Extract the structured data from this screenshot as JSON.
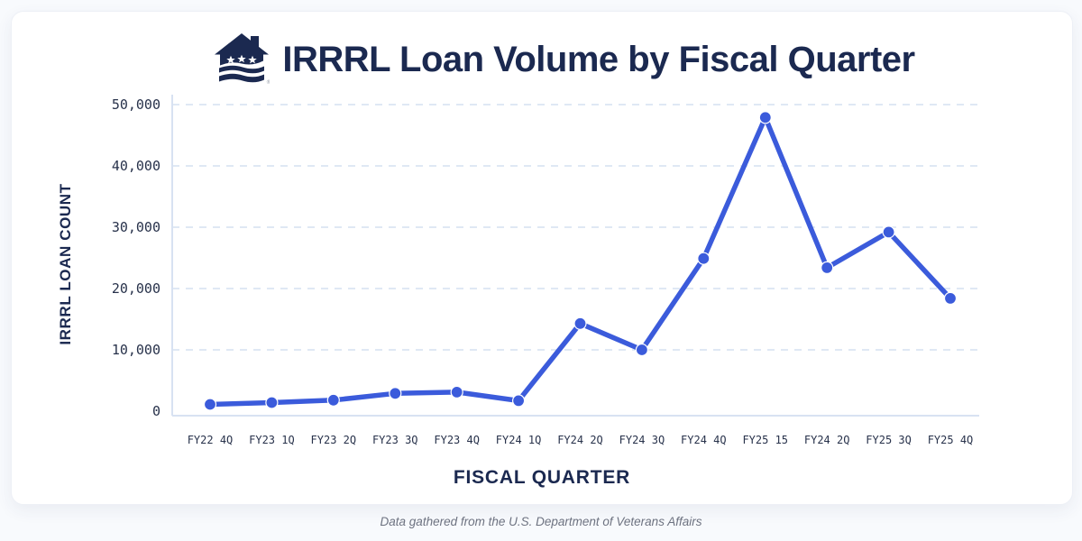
{
  "header": {
    "title": "IRRRL Loan Volume by Fiscal Quarter",
    "logo": "va-house-flag-logo",
    "logo_mark": "®"
  },
  "chart_data": {
    "type": "line",
    "title": "IRRRL Loan Volume by Fiscal Quarter",
    "xlabel": "FISCAL QUARTER",
    "ylabel": "IRRRL LOAN COUNT",
    "categories": [
      "FY22 4Q",
      "FY23 1Q",
      "FY23 2Q",
      "FY23 3Q",
      "FY23 4Q",
      "FY24 1Q",
      "FY24 2Q",
      "FY24 3Q",
      "FY24 4Q",
      "FY25 15",
      "FY24 2Q",
      "FY25 3Q",
      "FY25 4Q"
    ],
    "values": [
      1100,
      1400,
      1800,
      2900,
      3100,
      1700,
      14300,
      10000,
      24900,
      47900,
      23400,
      29200,
      18400
    ],
    "ylim": [
      0,
      50000
    ],
    "ytick_values": [
      0,
      10000,
      20000,
      30000,
      40000,
      50000
    ],
    "ytick_labels": [
      "0",
      "10,000",
      "20,000",
      "30,000",
      "40,000",
      "50,000"
    ],
    "grid": "horizontal-dashed",
    "legend": "none",
    "marker": "circle"
  },
  "footer": {
    "source_note": "Data gathered from the U.S. Department of Veterans Affairs"
  },
  "colors": {
    "navy": "#1b2950",
    "accent_blue": "#3b5bdb",
    "gridline": "#dfe8f4",
    "axis_line": "#d8e2f2",
    "tick_text": "#28324b",
    "footer_gray": "#6d7280",
    "card_bg": "#ffffff",
    "page_bg": "#f8fafd"
  }
}
